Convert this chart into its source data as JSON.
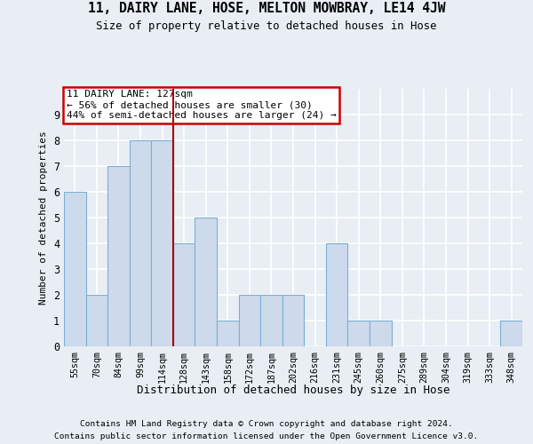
{
  "title1": "11, DAIRY LANE, HOSE, MELTON MOWBRAY, LE14 4JW",
  "title2": "Size of property relative to detached houses in Hose",
  "xlabel": "Distribution of detached houses by size in Hose",
  "ylabel": "Number of detached properties",
  "bin_labels": [
    "55sqm",
    "70sqm",
    "84sqm",
    "99sqm",
    "114sqm",
    "128sqm",
    "143sqm",
    "158sqm",
    "172sqm",
    "187sqm",
    "202sqm",
    "216sqm",
    "231sqm",
    "245sqm",
    "260sqm",
    "275sqm",
    "289sqm",
    "304sqm",
    "319sqm",
    "333sqm",
    "348sqm"
  ],
  "bar_heights": [
    6,
    2,
    7,
    8,
    8,
    4,
    5,
    1,
    2,
    2,
    2,
    0,
    4,
    1,
    1,
    0,
    0,
    0,
    0,
    0,
    1
  ],
  "bar_color": "#cddaeb",
  "bar_edge_color": "#7bafd4",
  "vline_x": 4.5,
  "vline_color": "#aa0000",
  "annotation_text": "11 DAIRY LANE: 127sqm\n← 56% of detached houses are smaller (30)\n44% of semi-detached houses are larger (24) →",
  "annotation_box_edgecolor": "#cc0000",
  "ylim": [
    0,
    10
  ],
  "yticks": [
    0,
    1,
    2,
    3,
    4,
    5,
    6,
    7,
    8,
    9
  ],
  "bg_color": "#e8eef4",
  "grid_color": "#ffffff",
  "footer1": "Contains HM Land Registry data © Crown copyright and database right 2024.",
  "footer2": "Contains public sector information licensed under the Open Government Licence v3.0."
}
